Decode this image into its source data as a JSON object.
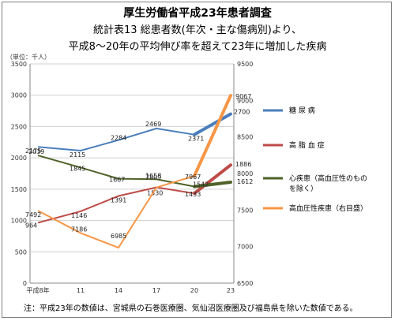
{
  "title": {
    "line1": "厚生労働省平成23年患者調査",
    "line2": "統計表13 総患者数(年次・主な傷病別)より、",
    "line3": "平成8～20年の平均伸び率を超えて23年に増加した疾病"
  },
  "unit_label": "（単位：千人）",
  "footnote": "注：平成23年の数値は、宮城県の石巻医療圏、気仙沼医療圏及び福島県を除いた数値である。",
  "chart_data": {
    "type": "line",
    "x": [
      "平成8年",
      "11",
      "14",
      "17",
      "20",
      "23"
    ],
    "ylim_left": [
      0,
      3500
    ],
    "yticks_left": [
      0,
      500,
      1000,
      1500,
      2000,
      2500,
      3000,
      3500
    ],
    "ylim_right": [
      6500,
      9500
    ],
    "yticks_right": [
      6500,
      7000,
      7500,
      8000,
      8500,
      9000,
      9500
    ],
    "grid": true,
    "legend_position": "right",
    "series": [
      {
        "name": "糖 尿 病",
        "axis": "left",
        "color": "#4a7ebb",
        "values": [
          2175,
          2115,
          2284,
          2469,
          2371,
          2700
        ]
      },
      {
        "name": "高 脂 血 症",
        "axis": "left",
        "color": "#be4b48",
        "values": [
          964,
          1146,
          1391,
          1530,
          1433,
          1886
        ]
      },
      {
        "name": "心疾患（高血圧性のものを除く）",
        "axis": "left",
        "color": "#4f6228",
        "values": [
          2039,
          1845,
          1667,
          1658,
          1542,
          1612
        ]
      },
      {
        "name": "高血圧性疾患（右目盛）",
        "axis": "right",
        "color": "#f79646",
        "values": [
          7492,
          7186,
          6985,
          7809,
          7967,
          9067
        ]
      }
    ]
  }
}
